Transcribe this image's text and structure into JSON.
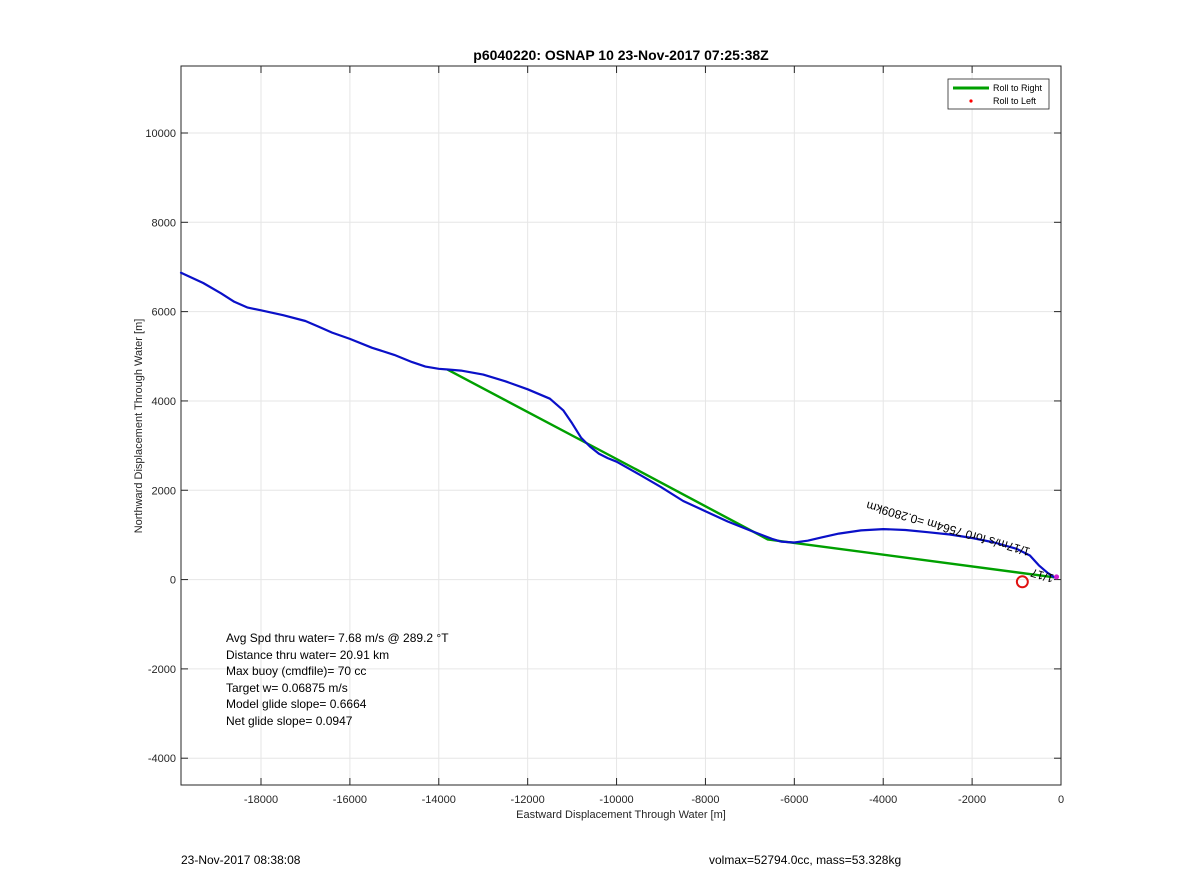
{
  "chart_data": {
    "type": "line",
    "title": "p6040220: OSNAP 10 23-Nov-2017 07:25:38Z",
    "xlabel": "Eastward Displacement Through Water [m]",
    "ylabel": "Northward Displacement Through Water [m]",
    "xlim": [
      -19800,
      0
    ],
    "ylim": [
      -4600,
      11500
    ],
    "xticks": [
      -18000,
      -16000,
      -14000,
      -12000,
      -10000,
      -8000,
      -6000,
      -4000,
      -2000,
      0
    ],
    "yticks": [
      -4000,
      -2000,
      0,
      2000,
      4000,
      6000,
      8000,
      10000
    ],
    "grid": true,
    "legend_position": "top-right",
    "legend": [
      {
        "label": "Roll to Right",
        "color": "#00a000",
        "style": "line"
      },
      {
        "label": "Roll to Left",
        "color": "#ff0000",
        "style": "dot"
      }
    ],
    "series": [
      {
        "color": "#0a10c8",
        "x": [
          -19800,
          -19300,
          -18900,
          -18600,
          -18300,
          -18000,
          -17500,
          -17000,
          -16700,
          -16400,
          -16000,
          -15500,
          -15000,
          -14600,
          -14300,
          -14000,
          -13800,
          -13500,
          -13000,
          -12500,
          -12000,
          -11500,
          -11200,
          -11000,
          -10800,
          -10600,
          -10400,
          -10200,
          -10000,
          -9500,
          -9000,
          -8500,
          -8000,
          -7500,
          -7000,
          -6500,
          -6300,
          -6000,
          -5700,
          -5400,
          -5000,
          -4500,
          -4000,
          -3500,
          -3000,
          -2500,
          -2000,
          -1500,
          -1000,
          -700,
          -500,
          -300,
          -150
        ],
        "y": [
          6870,
          6640,
          6410,
          6220,
          6090,
          6030,
          5920,
          5790,
          5660,
          5530,
          5390,
          5190,
          5030,
          4870,
          4770,
          4720,
          4705,
          4680,
          4590,
          4440,
          4260,
          4050,
          3790,
          3500,
          3180,
          2980,
          2820,
          2720,
          2640,
          2360,
          2070,
          1760,
          1530,
          1300,
          1100,
          910,
          850,
          830,
          870,
          940,
          1030,
          1100,
          1130,
          1110,
          1060,
          1010,
          930,
          830,
          690,
          540,
          320,
          150,
          50
        ]
      },
      {
        "name": "Roll to Right",
        "color": "#00a000",
        "x": [
          -13800,
          -10000,
          -6600,
          -150
        ],
        "y": [
          4700,
          2700,
          900,
          50
        ]
      }
    ],
    "markers": [
      {
        "x": -870,
        "y": -50,
        "shape": "circle",
        "color": "#e01010"
      },
      {
        "x": -100,
        "y": 60,
        "shape": "dot",
        "color": "#d020d0"
      }
    ],
    "annotations": {
      "rotated_text": "1/17m/s for0 7564m =0.2809km",
      "cluster_text": "1/17",
      "stats": [
        "Avg Spd thru water=  7.68 m/s @ 289.2 °T",
        "Distance thru water= 20.91 km",
        "Max buoy (cmdfile)= 70 cc",
        "Target w= 0.06875 m/s",
        "Model glide slope= 0.6664",
        "Net glide slope= 0.0947"
      ]
    }
  },
  "footer": {
    "timestamp": "23-Nov-2017 08:38:08",
    "volmax": "volmax=52794.0cc, mass=53.328kg"
  }
}
